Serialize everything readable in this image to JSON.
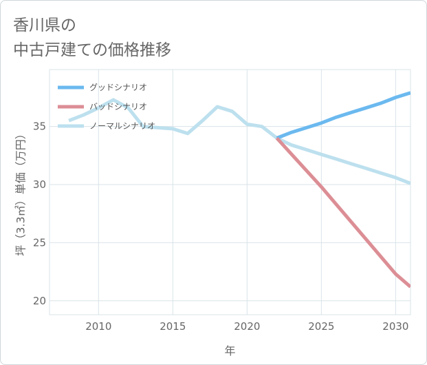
{
  "title": {
    "line1": "香川県の",
    "line2": "中古戸建ての価格推移"
  },
  "colors": {
    "good": "#6bb9ef",
    "bad": "#dc8e95",
    "normal": "#bde0ee",
    "grid": "#d9e3e8",
    "axis_text": "#666666"
  },
  "chart_data": {
    "type": "line",
    "title": "香川県の中古戸建ての価格推移",
    "xlabel": "年",
    "ylabel": "坪（3.3㎡）単価（万円）",
    "xlim": [
      2006.7,
      2031.0
    ],
    "ylim": [
      18.8,
      39.9
    ],
    "xticks": [
      2010,
      2015,
      2020,
      2025,
      2030
    ],
    "yticks": [
      20,
      25,
      30,
      35
    ],
    "grid": true,
    "legend_position": "top-left",
    "series": [
      {
        "name": "グッドシナリオ",
        "color": "#6bb9ef",
        "x": [
          2022,
          2023,
          2024,
          2025,
          2026,
          2027,
          2028,
          2029,
          2030,
          2031
        ],
        "y": [
          34.0,
          34.5,
          34.9,
          35.3,
          35.8,
          36.2,
          36.6,
          37.0,
          37.5,
          37.9
        ]
      },
      {
        "name": "バッドシナリオ",
        "color": "#dc8e95",
        "x": [
          2022,
          2023,
          2024,
          2025,
          2026,
          2027,
          2028,
          2029,
          2030,
          2031
        ],
        "y": [
          34.0,
          32.6,
          31.2,
          29.8,
          28.3,
          26.8,
          25.3,
          23.8,
          22.3,
          21.2
        ]
      },
      {
        "name": "ノーマルシナリオ",
        "color": "#bde0ee",
        "x": [
          2008,
          2009,
          2010,
          2011,
          2012,
          2013,
          2014,
          2015,
          2016,
          2017,
          2018,
          2019,
          2020,
          2021,
          2022,
          2023,
          2024,
          2025,
          2026,
          2027,
          2028,
          2029,
          2030,
          2031
        ],
        "y": [
          35.5,
          36.0,
          36.6,
          37.3,
          36.6,
          35.0,
          34.9,
          34.8,
          34.4,
          35.5,
          36.7,
          36.3,
          35.2,
          35.0,
          34.0,
          33.4,
          33.0,
          32.6,
          32.2,
          31.8,
          31.4,
          31.0,
          30.6,
          30.1
        ]
      }
    ]
  }
}
